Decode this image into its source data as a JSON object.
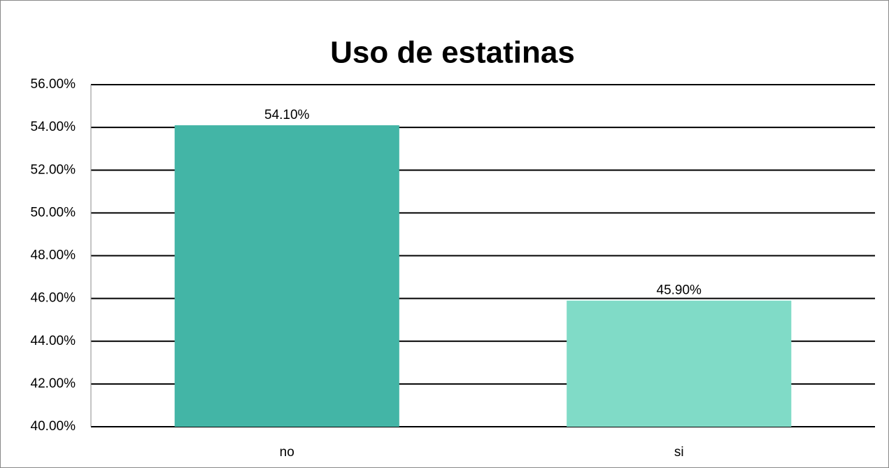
{
  "chart_data": {
    "type": "bar",
    "title": "Uso de estatinas",
    "categories": [
      "no",
      "si"
    ],
    "values": [
      54.1,
      45.9
    ],
    "value_labels": [
      "54.10%",
      "45.90%"
    ],
    "colors": [
      "#43b5a6",
      "#80dbc7"
    ],
    "ylim": [
      40,
      56
    ],
    "yticks": [
      {
        "value": 40,
        "label": "40.00%"
      },
      {
        "value": 42,
        "label": "42.00%"
      },
      {
        "value": 44,
        "label": "44.00%"
      },
      {
        "value": 46,
        "label": "46.00%"
      },
      {
        "value": 48,
        "label": "48.00%"
      },
      {
        "value": 50,
        "label": "50.00%"
      },
      {
        "value": 52,
        "label": "52.00%"
      },
      {
        "value": 54,
        "label": "54.00%"
      },
      {
        "value": 56,
        "label": "56.00%"
      }
    ],
    "grid": true
  }
}
